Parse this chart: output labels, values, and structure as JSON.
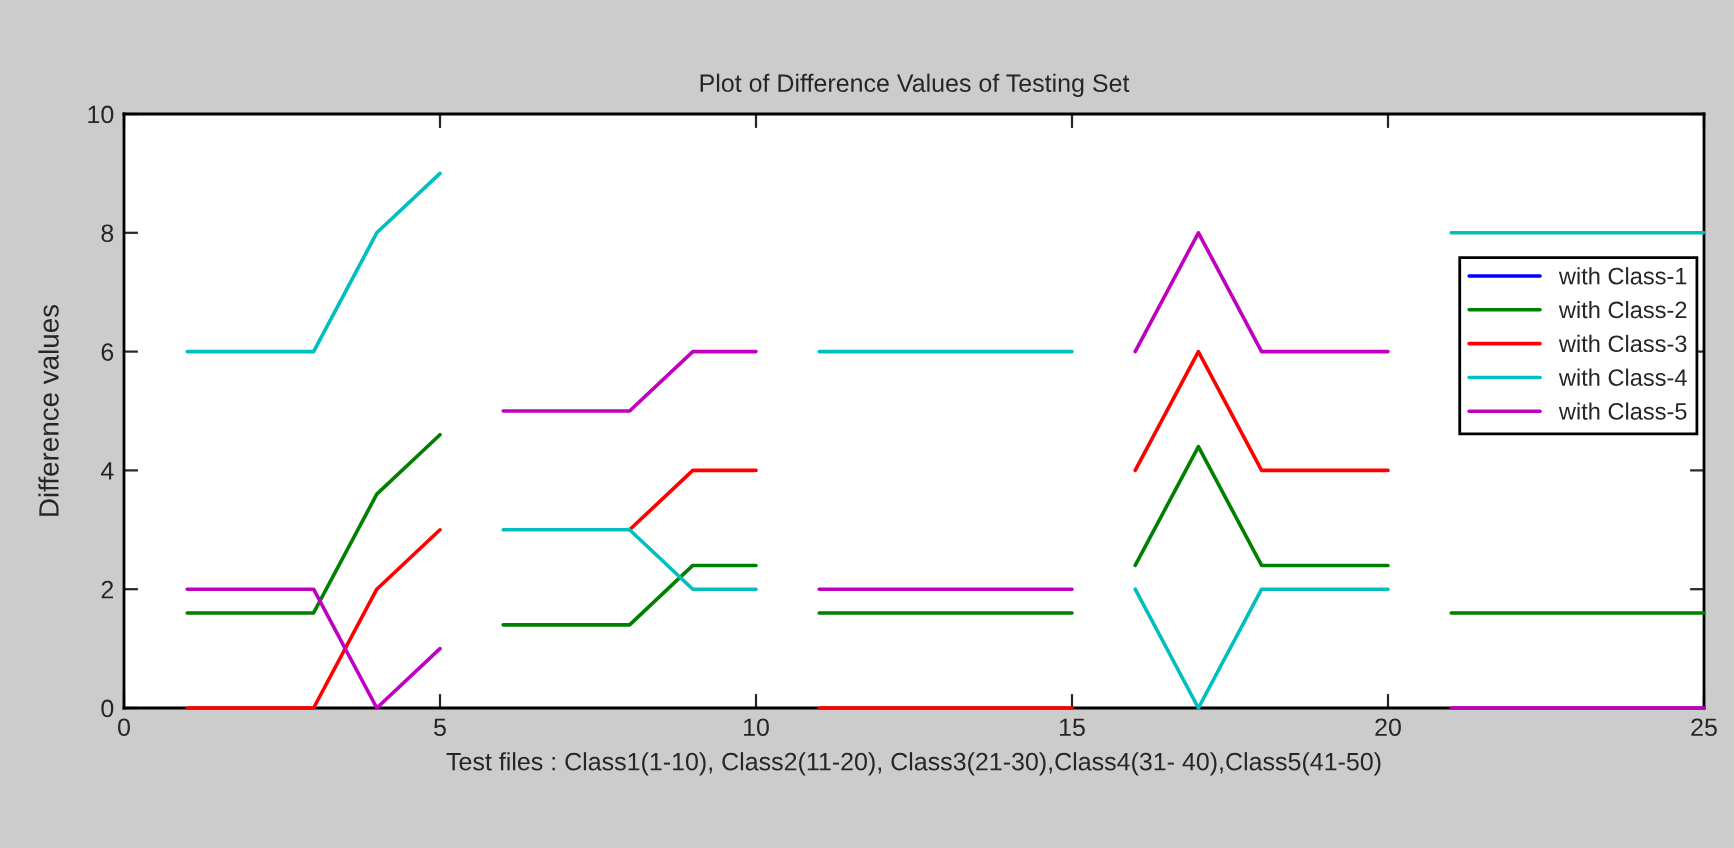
{
  "chart_data": {
    "type": "line",
    "title": "Plot of Difference Values of Testing Set",
    "xlabel": "Test files : Class1(1-10), Class2(11-20), Class3(21-30),Class4(31- 40),Class5(41-50)",
    "ylabel": "Difference values",
    "x": [
      1,
      2,
      3,
      4,
      5,
      5.5,
      6,
      7,
      8,
      9,
      10,
      10.5,
      11,
      12,
      13,
      14,
      15,
      15.5,
      16,
      17,
      18,
      19,
      20,
      20.5,
      21,
      22,
      23,
      24,
      25
    ],
    "series": [
      {
        "name": "with Class-1",
        "color": "#0000ff",
        "values": [
          null,
          null,
          null,
          null,
          null,
          null,
          null,
          null,
          null,
          null,
          null,
          null,
          null,
          null,
          null,
          null,
          null,
          null,
          null,
          null,
          null,
          null,
          null,
          null,
          null,
          null,
          null,
          null,
          null
        ]
      },
      {
        "name": "with Class-2",
        "color": "#008000",
        "values": [
          1.6,
          1.6,
          1.6,
          3.6,
          4.6,
          null,
          1.4,
          1.4,
          1.4,
          2.4,
          2.4,
          null,
          1.6,
          1.6,
          1.6,
          1.6,
          1.6,
          null,
          2.4,
          4.4,
          2.4,
          2.4,
          2.4,
          null,
          1.6,
          1.6,
          1.6,
          1.6,
          1.6
        ]
      },
      {
        "name": "with Class-3",
        "color": "#ff0000",
        "values": [
          0,
          0,
          0,
          2,
          3,
          null,
          null,
          null,
          3,
          4,
          4,
          null,
          0,
          0,
          0,
          0,
          0,
          null,
          4,
          6,
          4,
          4,
          4,
          null,
          null,
          null,
          null,
          null,
          null
        ]
      },
      {
        "name": "with Class-4",
        "color": "#00bfbf",
        "values": [
          6,
          6,
          6,
          8,
          9,
          null,
          3,
          3,
          3,
          2,
          2,
          null,
          6,
          6,
          6,
          6,
          6,
          null,
          2,
          0,
          2,
          2,
          2,
          null,
          8,
          8,
          8,
          8,
          8
        ]
      },
      {
        "name": "with Class-5",
        "color": "#bf00bf",
        "values": [
          2,
          2,
          2,
          0,
          1,
          null,
          5,
          5,
          5,
          6,
          6,
          null,
          2,
          2,
          2,
          2,
          2,
          null,
          6,
          8,
          6,
          6,
          6,
          null,
          0,
          0,
          0,
          0,
          0
        ]
      }
    ],
    "xlim": [
      0,
      25
    ],
    "xticks": [
      0,
      5,
      10,
      15,
      20,
      25
    ],
    "ylim": [
      0,
      10
    ],
    "yticks": [
      0,
      2,
      4,
      6,
      8,
      10
    ],
    "grid": false,
    "legend": "top right",
    "marker": "none",
    "line_style": "solid"
  }
}
